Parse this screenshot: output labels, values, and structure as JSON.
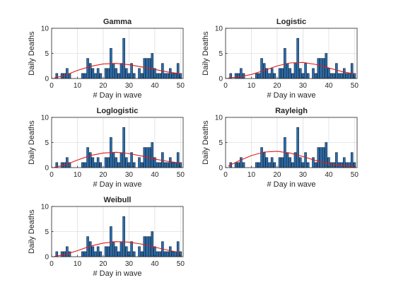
{
  "chart_data": {
    "type": "bar",
    "shared": {
      "xlabel": "# Day in wave",
      "ylabel": "Daily Deaths",
      "xlim": [
        0,
        51
      ],
      "ylim": [
        0,
        10
      ],
      "xticks": [
        0,
        10,
        20,
        30,
        40,
        50
      ],
      "yticks": [
        0,
        5,
        10
      ],
      "grid": true,
      "bar_color": "#2a6fb0",
      "bar_edge": "#0d1f33",
      "fit_color": "#e01b1b",
      "x": [
        1,
        2,
        3,
        4,
        5,
        6,
        7,
        8,
        9,
        10,
        11,
        12,
        13,
        14,
        15,
        16,
        17,
        18,
        19,
        20,
        21,
        22,
        23,
        24,
        25,
        26,
        27,
        28,
        29,
        30,
        31,
        32,
        33,
        34,
        35,
        36,
        37,
        38,
        39,
        40,
        41,
        42,
        43,
        44,
        45,
        46,
        47,
        48,
        49,
        50
      ],
      "values": [
        0,
        1,
        0,
        1,
        1,
        2,
        1,
        0,
        0,
        0,
        0,
        1,
        1,
        4,
        3,
        2,
        1,
        2,
        1,
        0,
        2,
        2,
        6,
        3,
        2,
        1,
        3,
        8,
        2,
        1,
        3,
        1,
        0,
        2,
        1,
        4,
        4,
        4,
        5,
        2,
        1,
        1,
        3,
        1,
        1,
        2,
        1,
        1,
        3,
        1
      ]
    },
    "panels": [
      {
        "title": "Gamma",
        "series": [
          {
            "x": [
              1,
              5,
              10,
              15,
              20,
              25,
              30,
              35,
              40,
              45,
              50
            ],
            "y": [
              0.1,
              0.6,
              1.6,
              2.4,
              2.9,
              3.0,
              2.75,
              2.3,
              1.8,
              1.3,
              0.95
            ]
          }
        ]
      },
      {
        "title": "Logistic",
        "series": [
          {
            "x": [
              1,
              5,
              10,
              15,
              20,
              25,
              30,
              35,
              40,
              45,
              50
            ],
            "y": [
              0.1,
              0.3,
              0.8,
              1.6,
              2.5,
              3.1,
              3.2,
              2.8,
              2.1,
              1.4,
              0.9
            ]
          }
        ]
      },
      {
        "title": "Loglogistic",
        "series": [
          {
            "x": [
              1,
              5,
              10,
              15,
              20,
              25,
              30,
              35,
              40,
              45,
              50
            ],
            "y": [
              0.05,
              0.5,
              1.5,
              2.4,
              2.9,
              3.05,
              2.8,
              2.3,
              1.7,
              1.25,
              0.9
            ]
          }
        ]
      },
      {
        "title": "Rayleigh",
        "series": [
          {
            "x": [
              1,
              5,
              10,
              15,
              20,
              25,
              30,
              35,
              40,
              45,
              50
            ],
            "y": [
              0.3,
              1.3,
              2.4,
              3.1,
              3.25,
              2.9,
              2.2,
              1.4,
              0.8,
              0.4,
              0.2
            ]
          }
        ]
      },
      {
        "title": "Weibull",
        "series": [
          {
            "x": [
              1,
              5,
              10,
              15,
              20,
              25,
              30,
              35,
              40,
              45,
              50
            ],
            "y": [
              0.05,
              0.4,
              1.2,
              2.1,
              2.7,
              3.0,
              2.9,
              2.5,
              1.9,
              1.3,
              0.8
            ]
          }
        ]
      }
    ]
  }
}
